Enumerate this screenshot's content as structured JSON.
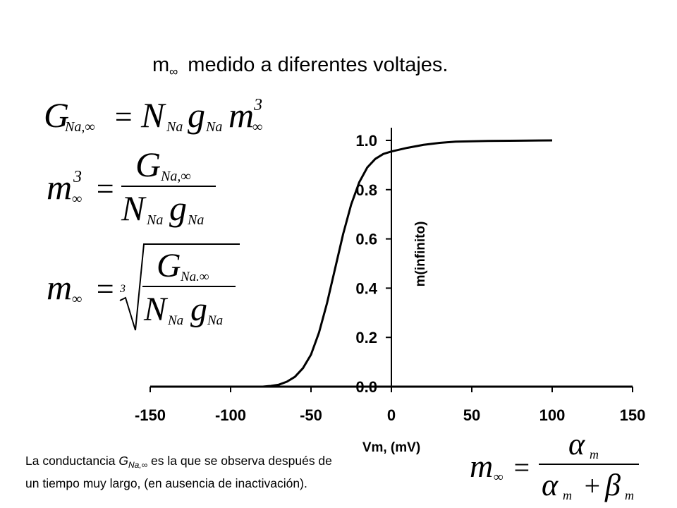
{
  "title": {
    "symbol": "m",
    "subscript": "∞",
    "text": "medido a diferentes voltajes."
  },
  "equations": {
    "eq1": {
      "G": "G",
      "G_sub": "Na,∞",
      "N": "N",
      "N_sub": "Na",
      "g": "g",
      "g_sub": "Na",
      "m": "m",
      "m_sub": "∞",
      "power": "3",
      "equals": "="
    },
    "eq2": {
      "m": "m",
      "m_sub": "∞",
      "power": "3",
      "G": "G",
      "G_sub": "Na,∞",
      "N": "N",
      "N_sub": "Na",
      "g": "g",
      "g_sub": "Na",
      "equals": "="
    },
    "eq3": {
      "m": "m",
      "m_sub": "∞",
      "root_index": "3",
      "G": "G",
      "G_sub": "Na.∞",
      "N": "N",
      "N_sub": "Na",
      "g": "g",
      "g_sub": "Na",
      "equals": "="
    },
    "eq4": {
      "m": "m",
      "m_sub": "∞",
      "alpha": "α",
      "alpha_sub": "m",
      "beta": "β",
      "beta_sub": "m",
      "plus": "+",
      "equals": "="
    }
  },
  "caption": {
    "line1_pre": "La conductancia ",
    "G": "G",
    "G_sub": "Na,∞",
    "line1_post": " es la que se observa después de",
    "line2": "un tiempo muy largo, (en ausencia de inactivación)."
  },
  "chart_data": {
    "type": "line",
    "xlabel": "Vm, (mV)",
    "ylabel": "m(infinito)",
    "xlim": [
      -150,
      150
    ],
    "ylim": [
      0,
      1.0
    ],
    "x_ticks": [
      "-150",
      "-100",
      "-50",
      "0",
      "50",
      "100",
      "150"
    ],
    "y_ticks": [
      "0.0",
      "0.2",
      "0.4",
      "0.6",
      "0.8",
      "1.0"
    ],
    "grid": false,
    "series": [
      {
        "color": "#000000",
        "x": [
          -80,
          -75,
          -70,
          -65,
          -60,
          -55,
          -50,
          -45,
          -40,
          -35,
          -30,
          -25,
          -20,
          -15,
          -10,
          -5,
          0,
          10,
          20,
          30,
          40,
          60,
          80,
          100
        ],
        "y": [
          0.0,
          0.003,
          0.008,
          0.02,
          0.04,
          0.075,
          0.13,
          0.22,
          0.34,
          0.48,
          0.62,
          0.74,
          0.83,
          0.89,
          0.925,
          0.945,
          0.955,
          0.97,
          0.982,
          0.99,
          0.995,
          0.998,
          0.999,
          1.0
        ]
      }
    ]
  }
}
